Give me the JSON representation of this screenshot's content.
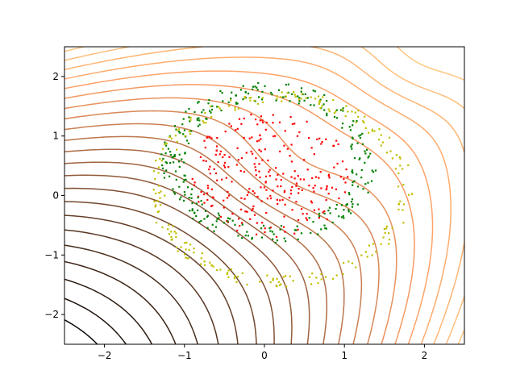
{
  "chart_data": {
    "type": "scatter",
    "title": "",
    "xlabel": "",
    "ylabel": "",
    "xlim": [
      -2.5,
      2.5
    ],
    "ylim": [
      -2.5,
      2.5
    ],
    "xticks": [
      -2,
      -1,
      0,
      1,
      2
    ],
    "yticks": [
      -2,
      -1,
      0,
      1,
      2
    ],
    "xtick_labels": [
      "−2",
      "−1",
      "0",
      "1",
      "2"
    ],
    "ytick_labels": [
      "−2",
      "−1",
      "0",
      "1",
      "2"
    ],
    "grid": false,
    "legend": "none",
    "background_contours": {
      "type": "contour",
      "colormap": "copper",
      "levels": 22,
      "description_colors": [
        "#000000",
        "#ffc77f"
      ]
    },
    "series": [
      {
        "color": "#ff0000",
        "marker": "dot",
        "shape": "filled disc",
        "center": [
          0.1,
          0.35
        ],
        "radius_range": [
          0.0,
          1.05
        ],
        "count": 260
      },
      {
        "color": "#008000",
        "marker": "dot",
        "shape": "ring",
        "center": [
          0.05,
          0.55
        ],
        "radius_range": [
          1.05,
          1.35
        ],
        "count": 300
      },
      {
        "color": "#bfbf00",
        "marker": "dot",
        "shape": "ring",
        "center": [
          0.2,
          0.1
        ],
        "radius_range": [
          1.45,
          1.65
        ],
        "count": 230
      }
    ]
  }
}
